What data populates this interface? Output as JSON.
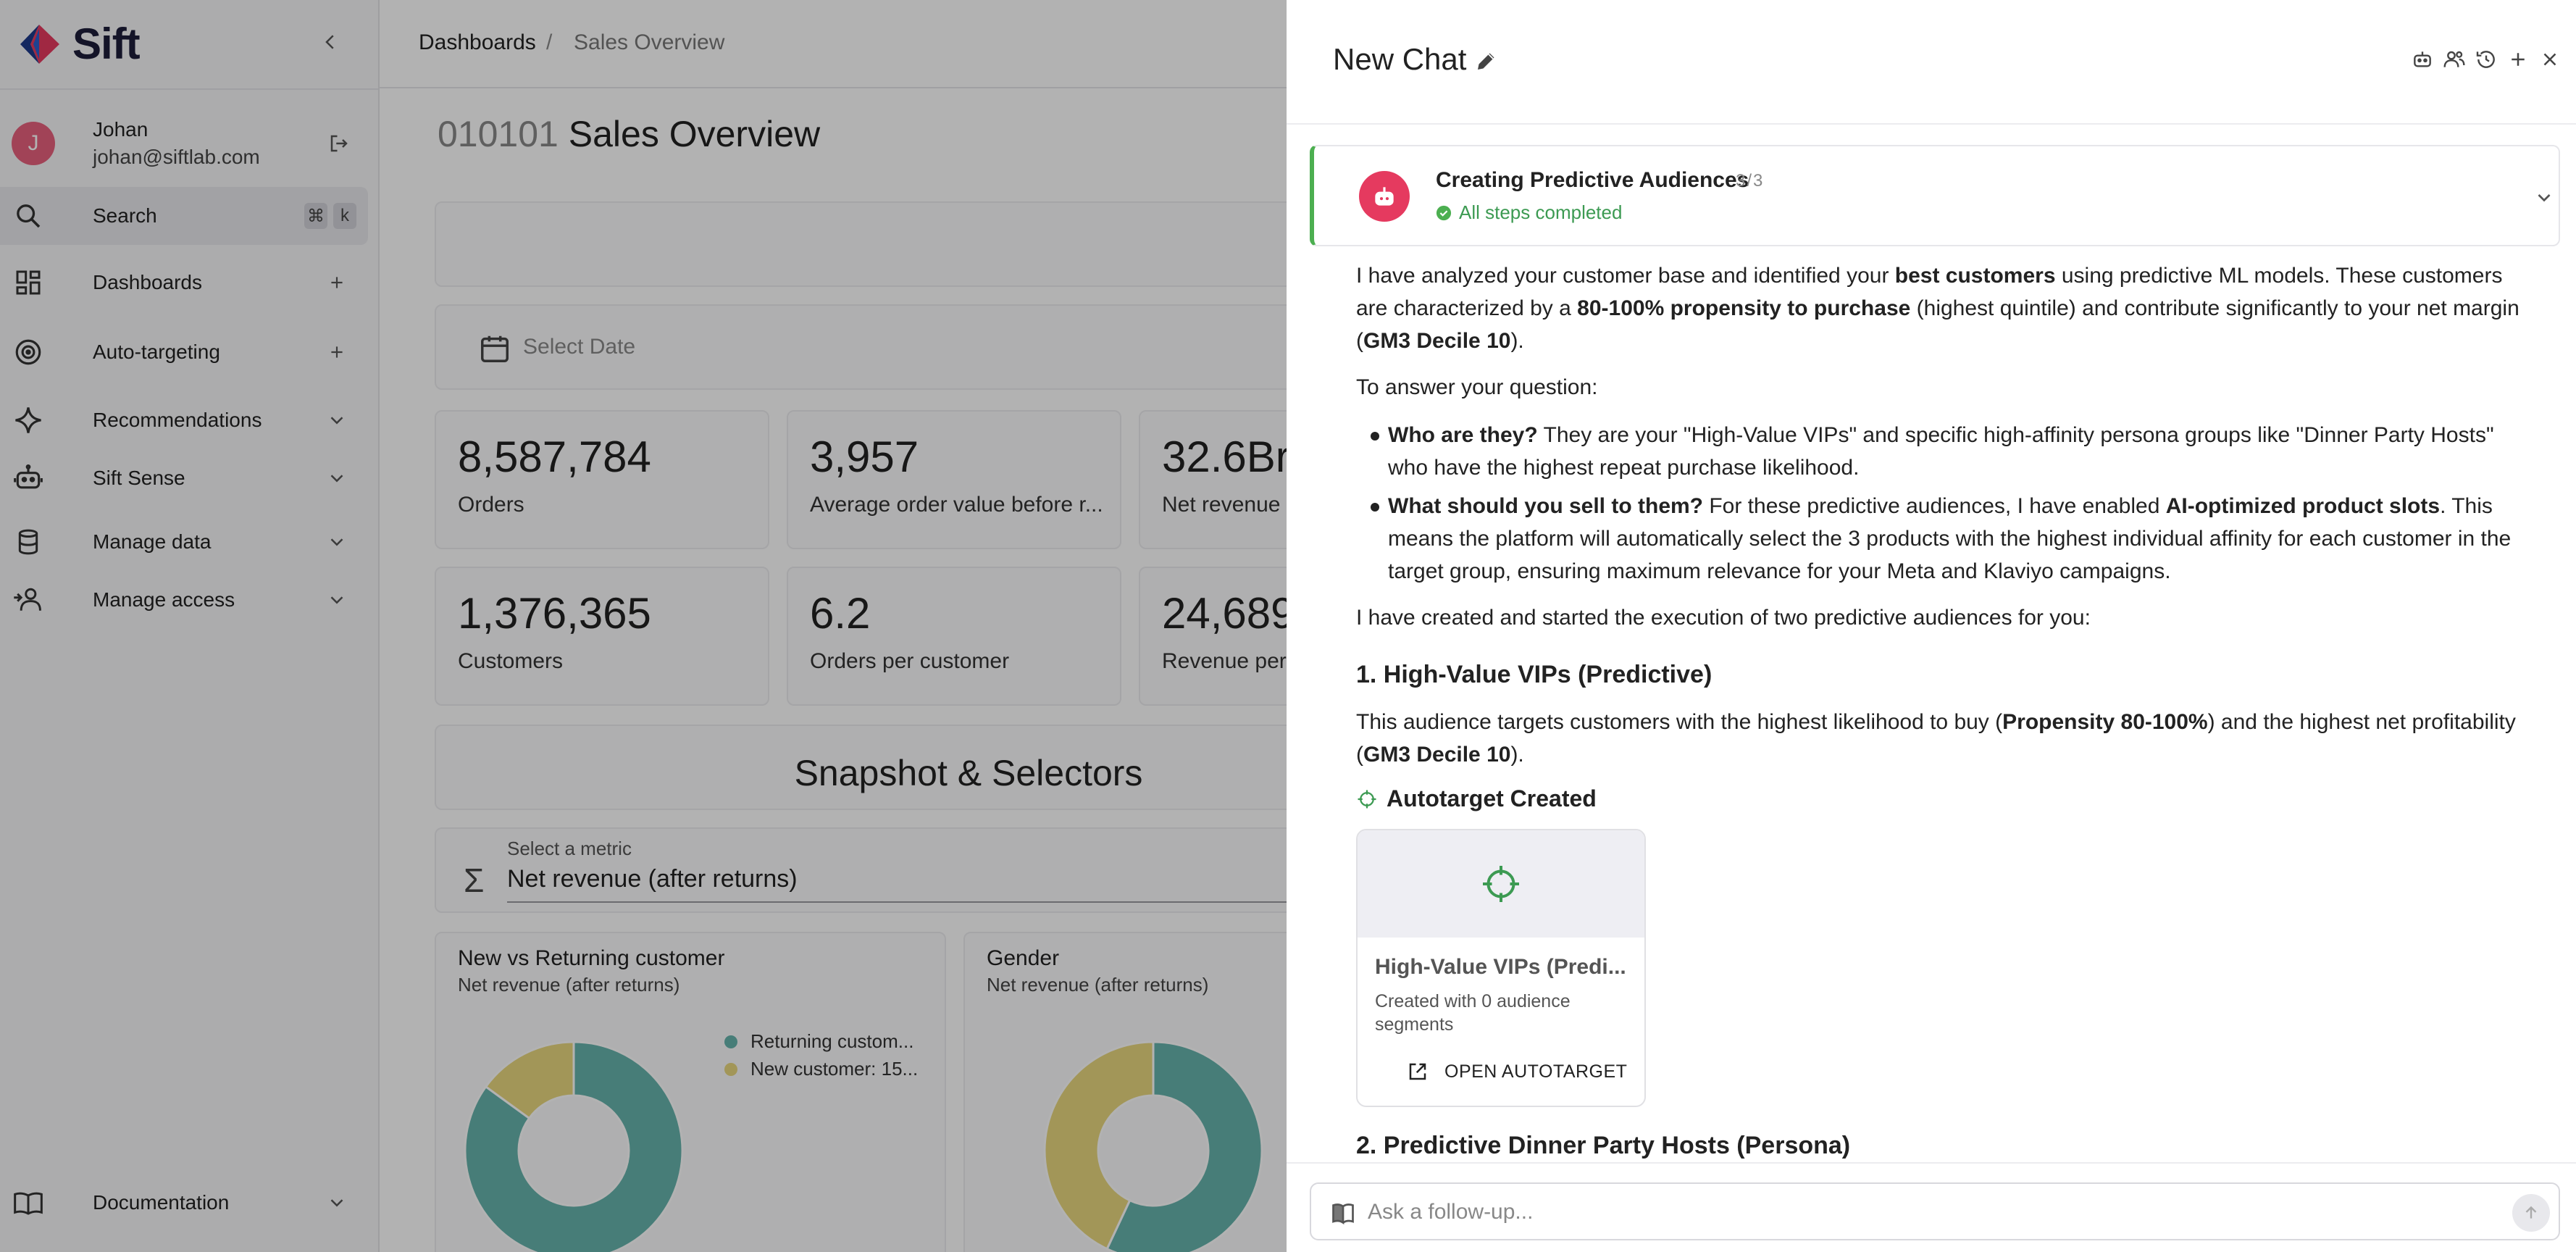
{
  "brand": {
    "name": "Sift"
  },
  "user": {
    "initial": "J",
    "name": "Johan",
    "email": "johan@siftlab.com"
  },
  "sidebar": {
    "search": {
      "label": "Search",
      "kbd_mod": "⌘",
      "kbd_key": "k"
    },
    "items": [
      {
        "label": "Dashboards"
      },
      {
        "label": "Auto-targeting"
      },
      {
        "label": "Recommendations"
      },
      {
        "label": "Sift Sense"
      },
      {
        "label": "Manage data"
      },
      {
        "label": "Manage access"
      }
    ],
    "footer": {
      "label": "Documentation"
    }
  },
  "breadcrumb": {
    "root": "Dashboards",
    "separator": "/",
    "current": "Sales Overview"
  },
  "dashboard": {
    "title_code": "010101",
    "title": "Sales Overview",
    "date_placeholder": "Select Date",
    "kpis": [
      {
        "value": "8,587,784",
        "label": "Orders"
      },
      {
        "value": "3,957",
        "label": "Average order value before r..."
      },
      {
        "value": "32.6Br",
        "label": "Net revenue ("
      },
      {
        "value": "1,376,365",
        "label": "Customers"
      },
      {
        "value": "6.2",
        "label": "Orders per customer"
      },
      {
        "value": "24,689",
        "label": "Revenue per"
      }
    ],
    "snapshot_title": "Snapshot & Selectors",
    "metric_caption": "Select a metric",
    "metric_value": "Net revenue (after returns)",
    "charts": [
      {
        "title": "New vs Returning customer",
        "subtitle": "Net revenue (after returns)",
        "legend": [
          {
            "label": "Returning custom...",
            "color": "#66b3ad"
          },
          {
            "label": "New customer: 15...",
            "color": "#e8d77e"
          }
        ]
      },
      {
        "title": "Gender",
        "subtitle": "Net revenue (after returns)"
      }
    ],
    "chart_data": [
      {
        "type": "pie",
        "title": "New vs Returning customer",
        "subtitle": "Net revenue (after returns)",
        "categories": [
          "Returning custom...",
          "New customer: 15..."
        ],
        "values": [
          85,
          15
        ],
        "colors": [
          "#66b3ad",
          "#e8d77e"
        ]
      },
      {
        "type": "pie",
        "title": "Gender",
        "subtitle": "Net revenue (after returns)",
        "categories": [
          "",
          ""
        ],
        "values": [
          57,
          43
        ],
        "colors": [
          "#66b3ad",
          "#e8d77e"
        ]
      }
    ]
  },
  "chat": {
    "title": "New Chat",
    "task": {
      "title": "Creating Predictive Audiences",
      "count": "3/3",
      "status": "All steps completed"
    },
    "p1": {
      "a": "I have analyzed your customer base and identified your ",
      "b": "best customers",
      "c": " using predictive ML models. These customers are characterized by a ",
      "d": "80-100% propensity to purchase",
      "e": " (highest quintile) and contribute significantly to your net margin (",
      "f": "GM3 Decile 10",
      "g": ")."
    },
    "p2": "To answer your question:",
    "bullet1": {
      "a": "Who are they?",
      "b": " They are your \"High-Value VIPs\" and specific high-affinity persona groups like \"Dinner Party Hosts\" who have the highest repeat purchase likelihood."
    },
    "bullet2": {
      "a": "What should you sell to them?",
      "b": " For these predictive audiences, I have enabled ",
      "c": "AI-optimized product slots",
      "d": ". This means the platform will automatically select the 3 products with the highest individual affinity for each customer in the target group, ensuring maximum relevance for your Meta and Klaviyo campaigns."
    },
    "p3": "I have created and started the execution of two predictive audiences for you:",
    "h1": "1. High-Value VIPs (Predictive)",
    "p4": {
      "a": "This audience targets customers with the highest likelihood to buy (",
      "b": "Propensity 80-100%",
      "c": ") and the highest net profitability (",
      "d": "GM3 Decile 10",
      "e": ")."
    },
    "autotarget_head": "Autotarget Created",
    "autotarget_card": {
      "title": "High-Value VIPs (Predi...",
      "subtitle": "Created with 0 audience segments",
      "button": "OPEN AUTOTARGET"
    },
    "h2": "2. Predictive Dinner Party Hosts (Persona)",
    "composer": {
      "placeholder": "Ask a follow-up..."
    }
  }
}
